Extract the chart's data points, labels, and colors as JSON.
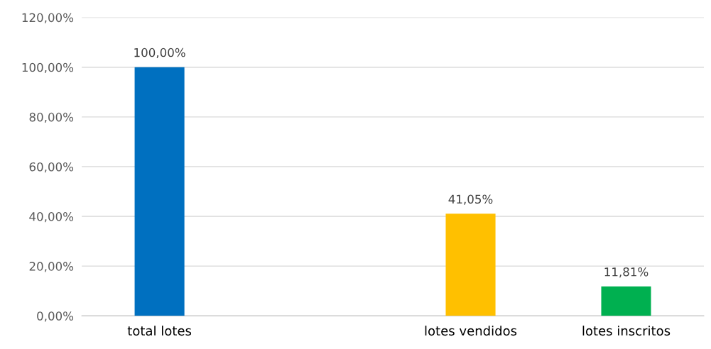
{
  "chart_data": {
    "type": "bar",
    "categories": [
      "total lotes",
      null,
      "lotes vendidos",
      "lotes inscritos"
    ],
    "values": [
      100,
      null,
      41.05,
      11.81
    ],
    "colors": [
      "#0070c0",
      "#a5a5a5",
      "#ffc000",
      "#00b050"
    ],
    "value_labels": [
      "100,00%",
      null,
      "41,05%",
      "11,81%"
    ],
    "ylim": [
      0,
      120
    ],
    "yticks": [
      {
        "value": 0,
        "label": "0,00%"
      },
      {
        "value": 20,
        "label": "20,00%"
      },
      {
        "value": 40,
        "label": "40,00%"
      },
      {
        "value": 60,
        "label": "60,00%"
      },
      {
        "value": 80,
        "label": "80,00%"
      },
      {
        "value": 100,
        "label": "100,00%"
      },
      {
        "value": 120,
        "label": "120,00%"
      }
    ],
    "grid": "y",
    "legend": false
  }
}
